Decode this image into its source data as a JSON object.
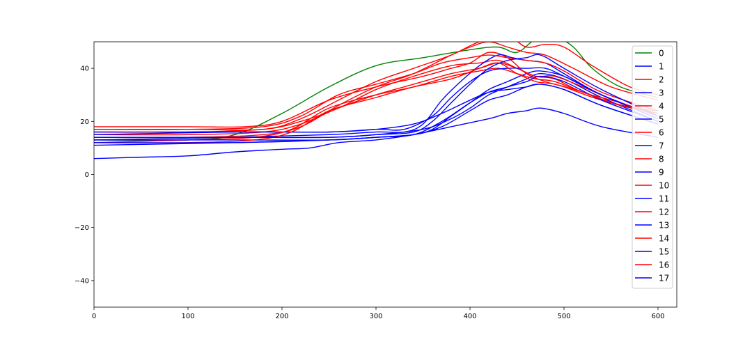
{
  "chart_data": {
    "type": "line",
    "title": "",
    "xlabel": "",
    "ylabel": "",
    "xlim": [
      0,
      620
    ],
    "ylim": [
      -50,
      50
    ],
    "x_ticks": [
      0,
      100,
      200,
      300,
      400,
      500,
      600
    ],
    "y_ticks": [
      -40,
      -20,
      0,
      20,
      40
    ],
    "grid": false,
    "legend_position": "right",
    "colors": {
      "green": "#008000",
      "red": "#ff0000",
      "blue": "#0000ff"
    },
    "series": [
      {
        "name": "0",
        "color": "#008000",
        "points": [
          [
            0,
            13
          ],
          [
            100,
            13
          ],
          [
            150,
            15
          ],
          [
            200,
            23
          ],
          [
            250,
            33
          ],
          [
            300,
            41
          ],
          [
            350,
            44
          ],
          [
            400,
            47
          ],
          [
            430,
            48
          ],
          [
            450,
            46
          ],
          [
            470,
            51
          ],
          [
            490,
            52
          ],
          [
            510,
            48
          ],
          [
            530,
            40
          ],
          [
            560,
            33
          ],
          [
            600,
            29
          ]
        ]
      },
      {
        "name": "1",
        "color": "#0000ff",
        "points": [
          [
            0,
            11
          ],
          [
            150,
            12
          ],
          [
            250,
            13
          ],
          [
            300,
            14
          ],
          [
            340,
            15
          ],
          [
            360,
            17
          ],
          [
            380,
            22
          ],
          [
            400,
            27
          ],
          [
            420,
            32
          ],
          [
            440,
            35
          ],
          [
            460,
            38
          ],
          [
            475,
            39
          ],
          [
            500,
            37
          ],
          [
            540,
            30
          ],
          [
            600,
            21
          ]
        ]
      },
      {
        "name": "2",
        "color": "#ff0000",
        "points": [
          [
            0,
            18
          ],
          [
            100,
            18
          ],
          [
            160,
            18
          ],
          [
            200,
            20
          ],
          [
            250,
            28
          ],
          [
            300,
            33
          ],
          [
            350,
            37
          ],
          [
            380,
            40
          ],
          [
            400,
            42
          ],
          [
            420,
            46
          ],
          [
            440,
            44
          ],
          [
            460,
            38
          ],
          [
            480,
            35
          ],
          [
            500,
            33
          ],
          [
            540,
            28
          ],
          [
            600,
            23
          ]
        ]
      },
      {
        "name": "3",
        "color": "#0000ff",
        "points": [
          [
            0,
            14
          ],
          [
            150,
            14
          ],
          [
            250,
            14
          ],
          [
            300,
            15
          ],
          [
            350,
            17
          ],
          [
            380,
            21
          ],
          [
            400,
            25
          ],
          [
            420,
            30
          ],
          [
            440,
            33
          ],
          [
            460,
            36
          ],
          [
            475,
            38
          ],
          [
            500,
            36
          ],
          [
            540,
            29
          ],
          [
            600,
            20
          ]
        ]
      },
      {
        "name": "4",
        "color": "#ff0000",
        "points": [
          [
            0,
            16
          ],
          [
            100,
            16
          ],
          [
            180,
            17
          ],
          [
            220,
            20
          ],
          [
            260,
            25
          ],
          [
            300,
            32
          ],
          [
            340,
            37
          ],
          [
            380,
            41
          ],
          [
            410,
            42
          ],
          [
            430,
            43
          ],
          [
            450,
            40
          ],
          [
            470,
            37
          ],
          [
            490,
            37
          ],
          [
            520,
            33
          ],
          [
            560,
            27
          ],
          [
            600,
            23
          ]
        ]
      },
      {
        "name": "5",
        "color": "#0000ff",
        "points": [
          [
            0,
            13
          ],
          [
            150,
            14
          ],
          [
            250,
            15
          ],
          [
            300,
            16
          ],
          [
            330,
            16
          ],
          [
            350,
            19
          ],
          [
            370,
            28
          ],
          [
            390,
            35
          ],
          [
            410,
            41
          ],
          [
            430,
            45
          ],
          [
            445,
            44
          ],
          [
            460,
            43
          ],
          [
            480,
            42
          ],
          [
            500,
            38
          ],
          [
            540,
            30
          ],
          [
            600,
            22
          ]
        ]
      },
      {
        "name": "6",
        "color": "#ff0000",
        "points": [
          [
            0,
            15
          ],
          [
            100,
            15
          ],
          [
            180,
            16
          ],
          [
            220,
            19
          ],
          [
            260,
            25
          ],
          [
            300,
            30
          ],
          [
            340,
            34
          ],
          [
            380,
            38
          ],
          [
            410,
            40
          ],
          [
            430,
            42
          ],
          [
            450,
            40
          ],
          [
            470,
            37
          ],
          [
            490,
            36
          ],
          [
            520,
            31
          ],
          [
            560,
            27
          ],
          [
            600,
            22
          ]
        ]
      },
      {
        "name": "7",
        "color": "#0000ff",
        "points": [
          [
            0,
            6
          ],
          [
            50,
            6.5
          ],
          [
            100,
            7
          ],
          [
            150,
            8.5
          ],
          [
            200,
            9.5
          ],
          [
            230,
            10
          ],
          [
            260,
            12
          ],
          [
            300,
            13
          ],
          [
            340,
            15
          ],
          [
            380,
            18
          ],
          [
            420,
            21
          ],
          [
            440,
            23
          ],
          [
            460,
            24
          ],
          [
            475,
            25
          ],
          [
            500,
            23
          ],
          [
            540,
            18
          ],
          [
            600,
            14
          ]
        ]
      },
      {
        "name": "8",
        "color": "#ff0000",
        "points": [
          [
            0,
            12
          ],
          [
            100,
            13
          ],
          [
            170,
            14
          ],
          [
            210,
            17
          ],
          [
            250,
            25
          ],
          [
            300,
            30
          ],
          [
            340,
            33
          ],
          [
            380,
            37
          ],
          [
            410,
            39
          ],
          [
            430,
            40
          ],
          [
            450,
            38
          ],
          [
            470,
            36
          ],
          [
            490,
            35
          ],
          [
            520,
            31
          ],
          [
            560,
            26
          ],
          [
            600,
            23
          ]
        ]
      },
      {
        "name": "9",
        "color": "#0000ff",
        "points": [
          [
            0,
            15
          ],
          [
            150,
            16
          ],
          [
            250,
            16
          ],
          [
            300,
            17
          ],
          [
            330,
            17
          ],
          [
            360,
            22
          ],
          [
            380,
            29
          ],
          [
            400,
            35
          ],
          [
            420,
            39
          ],
          [
            440,
            40
          ],
          [
            460,
            40
          ],
          [
            480,
            40
          ],
          [
            500,
            37
          ],
          [
            540,
            30
          ],
          [
            600,
            21
          ]
        ]
      },
      {
        "name": "10",
        "color": "#ff0000",
        "points": [
          [
            0,
            17
          ],
          [
            100,
            17
          ],
          [
            180,
            18
          ],
          [
            220,
            22
          ],
          [
            260,
            30
          ],
          [
            300,
            34
          ],
          [
            340,
            38
          ],
          [
            370,
            42
          ],
          [
            400,
            44
          ],
          [
            420,
            45
          ],
          [
            440,
            44
          ],
          [
            460,
            43
          ],
          [
            480,
            42
          ],
          [
            500,
            39
          ],
          [
            540,
            31
          ],
          [
            600,
            24
          ]
        ]
      },
      {
        "name": "11",
        "color": "#0000ff",
        "points": [
          [
            0,
            16
          ],
          [
            100,
            16
          ],
          [
            200,
            16
          ],
          [
            250,
            16
          ],
          [
            300,
            17
          ],
          [
            340,
            19
          ],
          [
            370,
            23
          ],
          [
            400,
            28
          ],
          [
            420,
            31
          ],
          [
            440,
            32
          ],
          [
            460,
            33
          ],
          [
            475,
            34
          ],
          [
            500,
            32
          ],
          [
            540,
            26
          ],
          [
            600,
            19
          ]
        ]
      },
      {
        "name": "12",
        "color": "#ff0000",
        "points": [
          [
            0,
            14
          ],
          [
            100,
            14
          ],
          [
            180,
            15
          ],
          [
            220,
            18
          ],
          [
            260,
            26
          ],
          [
            300,
            33
          ],
          [
            340,
            38
          ],
          [
            380,
            45
          ],
          [
            400,
            48
          ],
          [
            420,
            50
          ],
          [
            440,
            48
          ],
          [
            460,
            46
          ],
          [
            480,
            45
          ],
          [
            510,
            40
          ],
          [
            550,
            33
          ],
          [
            600,
            28
          ]
        ]
      },
      {
        "name": "13",
        "color": "#0000ff",
        "points": [
          [
            0,
            13
          ],
          [
            150,
            13
          ],
          [
            250,
            13
          ],
          [
            300,
            14
          ],
          [
            340,
            15
          ],
          [
            370,
            20
          ],
          [
            400,
            27
          ],
          [
            420,
            31
          ],
          [
            440,
            33
          ],
          [
            460,
            35
          ],
          [
            475,
            37
          ],
          [
            500,
            35
          ],
          [
            540,
            28
          ],
          [
            600,
            20
          ]
        ]
      },
      {
        "name": "14",
        "color": "#ff0000",
        "points": [
          [
            0,
            12
          ],
          [
            100,
            12
          ],
          [
            170,
            13
          ],
          [
            210,
            16
          ],
          [
            250,
            24
          ],
          [
            300,
            29
          ],
          [
            340,
            33
          ],
          [
            380,
            36
          ],
          [
            410,
            40
          ],
          [
            430,
            42
          ],
          [
            450,
            38
          ],
          [
            470,
            35
          ],
          [
            490,
            34
          ],
          [
            520,
            31
          ],
          [
            560,
            26
          ],
          [
            600,
            24
          ]
        ]
      },
      {
        "name": "15",
        "color": "#0000ff",
        "points": [
          [
            0,
            12
          ],
          [
            150,
            12
          ],
          [
            250,
            13
          ],
          [
            300,
            14
          ],
          [
            340,
            15
          ],
          [
            370,
            18
          ],
          [
            400,
            24
          ],
          [
            420,
            28
          ],
          [
            440,
            30
          ],
          [
            460,
            33
          ],
          [
            475,
            34
          ],
          [
            500,
            32
          ],
          [
            540,
            26
          ],
          [
            600,
            19
          ]
        ]
      },
      {
        "name": "16",
        "color": "#ff0000",
        "points": [
          [
            0,
            17
          ],
          [
            100,
            17
          ],
          [
            180,
            17
          ],
          [
            220,
            21
          ],
          [
            260,
            28
          ],
          [
            300,
            35
          ],
          [
            340,
            40
          ],
          [
            380,
            45
          ],
          [
            410,
            50
          ],
          [
            440,
            52
          ],
          [
            460,
            48
          ],
          [
            480,
            49
          ],
          [
            500,
            48
          ],
          [
            530,
            41
          ],
          [
            570,
            33
          ],
          [
            600,
            30
          ]
        ]
      },
      {
        "name": "17",
        "color": "#0000ff",
        "points": [
          [
            0,
            14
          ],
          [
            150,
            14
          ],
          [
            250,
            14
          ],
          [
            300,
            15
          ],
          [
            340,
            16
          ],
          [
            360,
            20
          ],
          [
            380,
            27
          ],
          [
            400,
            34
          ],
          [
            420,
            40
          ],
          [
            440,
            43
          ],
          [
            460,
            44
          ],
          [
            475,
            45
          ],
          [
            500,
            40
          ],
          [
            540,
            32
          ],
          [
            600,
            22
          ]
        ]
      }
    ]
  }
}
